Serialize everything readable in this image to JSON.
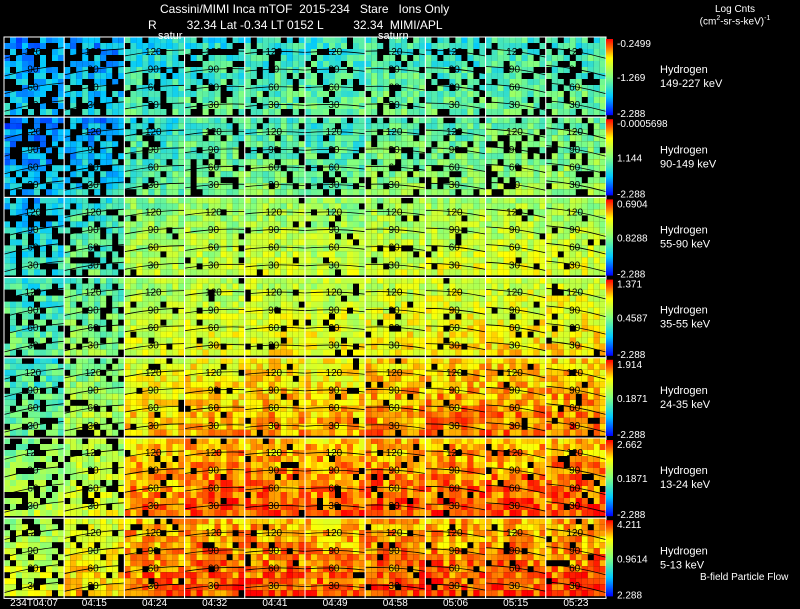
{
  "header": {
    "title": "Cassini/MIMI Inca mTOF  2015-234   Stare   Ions Only",
    "subtitle": "R         32.34 Lat -0.34 LT 0152 L         32.34  MIMI/APL",
    "saturn_labels": [
      "satur",
      "saturn"
    ],
    "legend_title_line1": "Log Cnts",
    "legend_title_line2": "(cm",
    "legend_title_sup": "2",
    "legend_title_line2b": "-sr-s-keV)",
    "legend_title_sup2": "-1",
    "footer_note": "B-field Particle Flow"
  },
  "colors": {
    "background": "#000000",
    "text": "#ffffff",
    "contour": "#000000",
    "grid_line": "#ffffff"
  },
  "chart_data": {
    "type": "heatmap",
    "title": "Cassini/MIMI Inca mTOF  2015-234   Stare   Ions Only",
    "time_labels": [
      "234T04:07",
      "04:15",
      "04:24",
      "04:32",
      "04:41",
      "04:49",
      "04:58",
      "05:06",
      "05:15",
      "05:23"
    ],
    "contour_levels": [
      30,
      60,
      90,
      120
    ],
    "rows": [
      {
        "species": "Hydrogen",
        "energy": "149-227 keV",
        "cmax": "-0.2499",
        "cmid": "-1.269",
        "cmin": "-2.288",
        "levels": [
          0.22,
          0.25,
          0.35,
          0.38,
          0.4,
          0.4,
          0.42,
          0.4,
          0.42,
          0.42
        ]
      },
      {
        "species": "Hydrogen",
        "energy": "90-149 keV",
        "cmax": "-0.0005698",
        "cmid": "1.144",
        "cmin": "-2.288",
        "levels": [
          0.2,
          0.25,
          0.4,
          0.45,
          0.45,
          0.42,
          0.48,
          0.48,
          0.5,
          0.5
        ]
      },
      {
        "species": "Hydrogen",
        "energy": "55-90 keV",
        "cmax": "0.6904",
        "cmid": "0.8288",
        "cmin": "-2.288",
        "levels": [
          0.3,
          0.4,
          0.55,
          0.58,
          0.6,
          0.58,
          0.6,
          0.62,
          0.62,
          0.62
        ]
      },
      {
        "species": "Hydrogen",
        "energy": "35-55 keV",
        "cmax": "1.371",
        "cmid": "0.4587",
        "cmin": "-2.288",
        "levels": [
          0.4,
          0.48,
          0.62,
          0.65,
          0.66,
          0.66,
          0.68,
          0.7,
          0.7,
          0.7
        ]
      },
      {
        "species": "Hydrogen",
        "energy": "24-35 keV",
        "cmax": "1.914",
        "cmid": "0.1871",
        "cmin": "-2.288",
        "levels": [
          0.42,
          0.55,
          0.72,
          0.76,
          0.78,
          0.76,
          0.8,
          0.82,
          0.82,
          0.82
        ]
      },
      {
        "species": "Hydrogen",
        "energy": "13-24 keV",
        "cmax": "2.662",
        "cmid": "0.1871",
        "cmin": "-2.288",
        "levels": [
          0.55,
          0.62,
          0.82,
          0.86,
          0.86,
          0.84,
          0.86,
          0.86,
          0.86,
          0.86
        ]
      },
      {
        "species": "Hydrogen",
        "energy": "5-13 keV",
        "cmax": "4.211",
        "cmid": "0.9614",
        "cmin": "2.288",
        "levels": [
          0.62,
          0.72,
          0.84,
          0.86,
          0.86,
          0.84,
          0.86,
          0.86,
          0.86,
          0.86
        ]
      }
    ]
  }
}
